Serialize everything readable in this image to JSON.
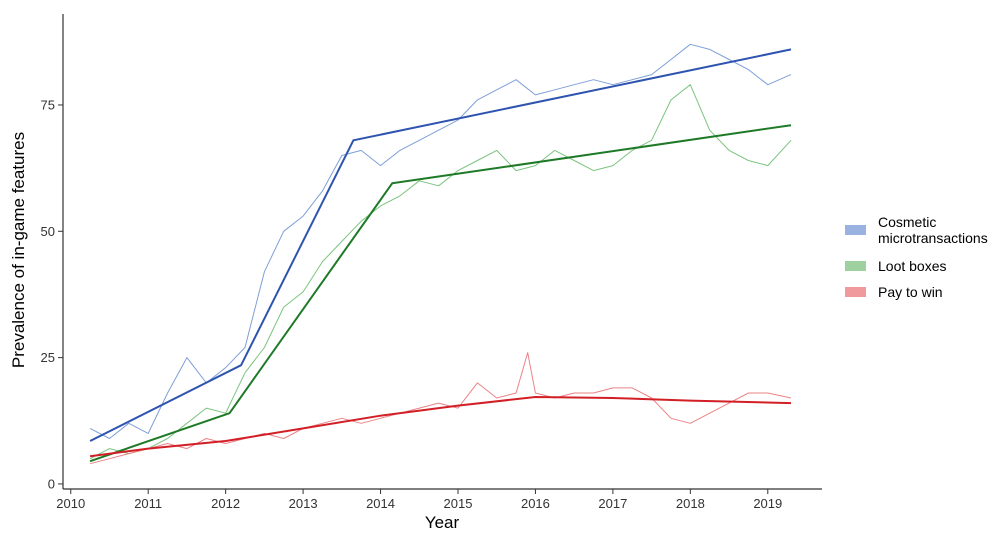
{
  "chart_data": {
    "type": "line",
    "title": "",
    "xlabel": "Year",
    "ylabel": "Prevalence of in-game features",
    "xlim": [
      2009.9,
      2019.7
    ],
    "ylim": [
      -1,
      93
    ],
    "x_ticks": [
      "2010",
      "2011",
      "2012",
      "2013",
      "2014",
      "2015",
      "2016",
      "2017",
      "2018",
      "2019"
    ],
    "y_ticks": [
      "0",
      "25",
      "50",
      "75"
    ],
    "grid": false,
    "legend_position": "right",
    "series": [
      {
        "name": "Cosmetic microtransactions",
        "color": "#2e54b0",
        "raw_color": "#7f9fd8",
        "legend_color": "#9ab2e0",
        "legend_lines": [
          "Cosmetic",
          "microtransactions"
        ],
        "trend": [
          [
            2010.25,
            8.5
          ],
          [
            2012.2,
            23.5
          ],
          [
            2013.65,
            68
          ],
          [
            2019.3,
            86
          ]
        ],
        "raw": [
          [
            2010.25,
            11
          ],
          [
            2010.5,
            9
          ],
          [
            2010.75,
            12
          ],
          [
            2011,
            10
          ],
          [
            2011.25,
            18
          ],
          [
            2011.5,
            25
          ],
          [
            2011.75,
            20
          ],
          [
            2012,
            23
          ],
          [
            2012.25,
            27
          ],
          [
            2012.5,
            42
          ],
          [
            2012.75,
            50
          ],
          [
            2013,
            53
          ],
          [
            2013.25,
            58
          ],
          [
            2013.5,
            65
          ],
          [
            2013.75,
            66
          ],
          [
            2014,
            63
          ],
          [
            2014.25,
            66
          ],
          [
            2014.5,
            68
          ],
          [
            2014.75,
            70
          ],
          [
            2015,
            72
          ],
          [
            2015.25,
            76
          ],
          [
            2015.5,
            78
          ],
          [
            2015.75,
            80
          ],
          [
            2016,
            77
          ],
          [
            2016.25,
            78
          ],
          [
            2016.5,
            79
          ],
          [
            2016.75,
            80
          ],
          [
            2017,
            79
          ],
          [
            2017.25,
            80
          ],
          [
            2017.5,
            81
          ],
          [
            2017.75,
            84
          ],
          [
            2018,
            87
          ],
          [
            2018.25,
            86
          ],
          [
            2018.5,
            84
          ],
          [
            2018.75,
            82
          ],
          [
            2019,
            79
          ],
          [
            2019.3,
            81
          ]
        ]
      },
      {
        "name": "Loot boxes",
        "color": "#1e7a26",
        "raw_color": "#7cc47f",
        "legend_color": "#9ed0a0",
        "legend_lines": [
          "Loot boxes"
        ],
        "trend": [
          [
            2010.25,
            4.5
          ],
          [
            2012.05,
            14
          ],
          [
            2014.15,
            59.5
          ],
          [
            2019.3,
            71
          ]
        ],
        "raw": [
          [
            2010.25,
            5
          ],
          [
            2010.5,
            7
          ],
          [
            2010.75,
            6
          ],
          [
            2011,
            7
          ],
          [
            2011.25,
            9
          ],
          [
            2011.5,
            12
          ],
          [
            2011.75,
            15
          ],
          [
            2012,
            14
          ],
          [
            2012.25,
            22
          ],
          [
            2012.5,
            27
          ],
          [
            2012.75,
            35
          ],
          [
            2013,
            38
          ],
          [
            2013.25,
            44
          ],
          [
            2013.5,
            48
          ],
          [
            2013.75,
            52
          ],
          [
            2014,
            55
          ],
          [
            2014.25,
            57
          ],
          [
            2014.5,
            60
          ],
          [
            2014.75,
            59
          ],
          [
            2015,
            62
          ],
          [
            2015.25,
            64
          ],
          [
            2015.5,
            66
          ],
          [
            2015.75,
            62
          ],
          [
            2016,
            63
          ],
          [
            2016.25,
            66
          ],
          [
            2016.5,
            64
          ],
          [
            2016.75,
            62
          ],
          [
            2017,
            63
          ],
          [
            2017.25,
            66
          ],
          [
            2017.5,
            68
          ],
          [
            2017.75,
            76
          ],
          [
            2018,
            79
          ],
          [
            2018.25,
            70
          ],
          [
            2018.5,
            66
          ],
          [
            2018.75,
            64
          ],
          [
            2019,
            63
          ],
          [
            2019.3,
            68
          ]
        ]
      },
      {
        "name": "Pay to win",
        "color": "#d21f26",
        "raw_color": "#ea8387",
        "legend_color": "#f09a9d",
        "legend_lines": [
          "Pay to win"
        ],
        "trend": [
          [
            2010.25,
            5.5
          ],
          [
            2011,
            7
          ],
          [
            2012,
            8.5
          ],
          [
            2013,
            11
          ],
          [
            2014,
            13.5
          ],
          [
            2015,
            15.5
          ],
          [
            2016,
            17.2
          ],
          [
            2017,
            17
          ],
          [
            2018,
            16.5
          ],
          [
            2019.3,
            16
          ]
        ],
        "raw": [
          [
            2010.25,
            4
          ],
          [
            2010.5,
            5
          ],
          [
            2010.75,
            6
          ],
          [
            2011,
            7
          ],
          [
            2011.25,
            8
          ],
          [
            2011.5,
            7
          ],
          [
            2011.75,
            9
          ],
          [
            2012,
            8
          ],
          [
            2012.25,
            9
          ],
          [
            2012.5,
            10
          ],
          [
            2012.75,
            9
          ],
          [
            2013,
            11
          ],
          [
            2013.25,
            12
          ],
          [
            2013.5,
            13
          ],
          [
            2013.75,
            12
          ],
          [
            2014,
            13
          ],
          [
            2014.25,
            14
          ],
          [
            2014.5,
            15
          ],
          [
            2014.75,
            16
          ],
          [
            2015,
            15
          ],
          [
            2015.25,
            20
          ],
          [
            2015.5,
            17
          ],
          [
            2015.75,
            18
          ],
          [
            2015.9,
            26
          ],
          [
            2016,
            18
          ],
          [
            2016.25,
            17
          ],
          [
            2016.5,
            18
          ],
          [
            2016.75,
            18
          ],
          [
            2017,
            19
          ],
          [
            2017.25,
            19
          ],
          [
            2017.5,
            17
          ],
          [
            2017.75,
            13
          ],
          [
            2018,
            12
          ],
          [
            2018.25,
            14
          ],
          [
            2018.5,
            16
          ],
          [
            2018.75,
            18
          ],
          [
            2019,
            18
          ],
          [
            2019.3,
            17
          ]
        ]
      }
    ]
  }
}
